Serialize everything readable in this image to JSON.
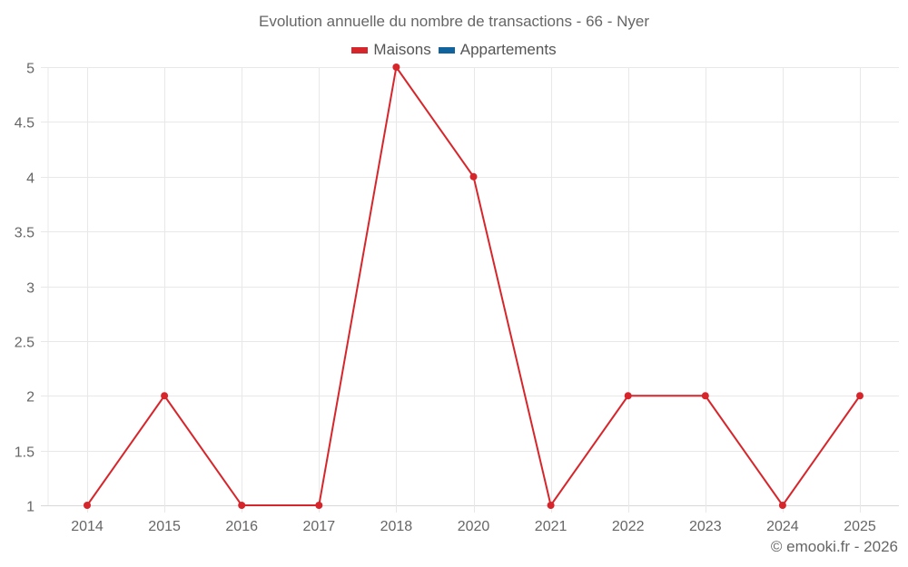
{
  "header": {
    "title": "Evolution annuelle du nombre de transactions - 66 - Nyer"
  },
  "legend": [
    {
      "label": "Maisons",
      "color": "#d7262b"
    },
    {
      "label": "Appartements",
      "color": "#10639c"
    }
  ],
  "footer": {
    "credit": "© emooki.fr - 2026"
  },
  "colors": {
    "series_line": "#d7262b",
    "grid": "#e8e8e8",
    "axis": "#d8d8d8",
    "text": "#666666"
  },
  "chart_data": {
    "type": "line",
    "title": "Evolution annuelle du nombre de transactions - 66 - Nyer",
    "xlabel": "",
    "ylabel": "",
    "categories": [
      "2014",
      "2015",
      "2016",
      "2017",
      "2018",
      "2020",
      "2021",
      "2022",
      "2023",
      "2024",
      "2025"
    ],
    "series": [
      {
        "name": "Maisons",
        "color": "#d7262b",
        "values": [
          1,
          2,
          1,
          1,
          5,
          4,
          1,
          2,
          2,
          1,
          2
        ]
      },
      {
        "name": "Appartements",
        "color": "#10639c",
        "values": []
      }
    ],
    "yticks": [
      "1",
      "1.5",
      "2",
      "2.5",
      "3",
      "3.5",
      "4",
      "4.5",
      "5"
    ],
    "ylim": [
      1,
      5
    ],
    "grid": true,
    "legend_position": "top"
  }
}
